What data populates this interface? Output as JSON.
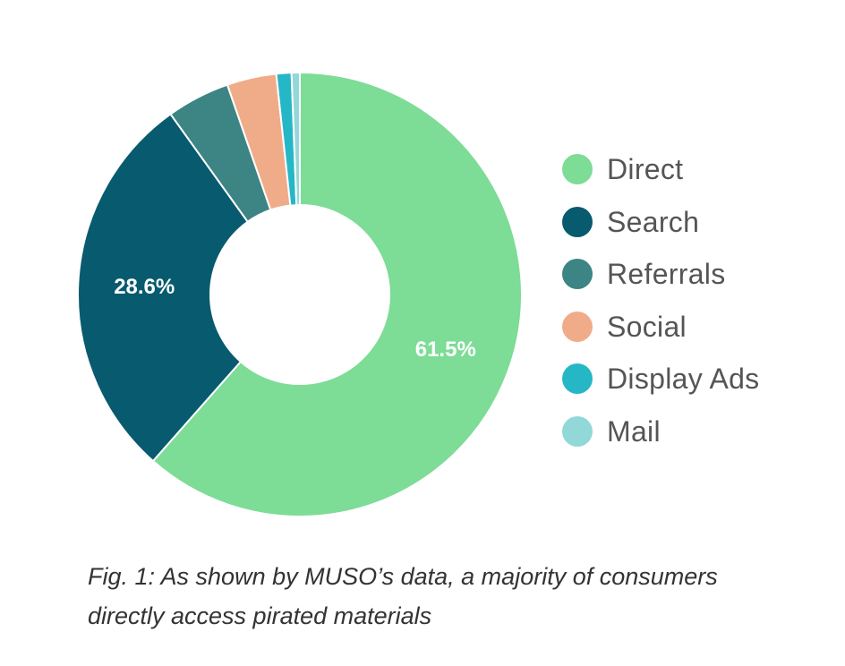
{
  "chart_data": {
    "type": "pie",
    "categories": [
      "Direct",
      "Search",
      "Referrals",
      "Social",
      "Display Ads",
      "Mail"
    ],
    "values": [
      61.5,
      28.6,
      4.6,
      3.6,
      1.1,
      0.6
    ],
    "data_labels": [
      "61.5%",
      "28.6%",
      "",
      "",
      "",
      ""
    ],
    "colors": [
      "#7ddc96",
      "#085a6e",
      "#3d8484",
      "#f0ac88",
      "#26b7c7",
      "#93d8d8"
    ],
    "legend_position": "right"
  },
  "caption": {
    "line1": "Fig. 1: As shown by MUSO’s data, a majority of consumers",
    "line2": "directly access pirated materials"
  }
}
